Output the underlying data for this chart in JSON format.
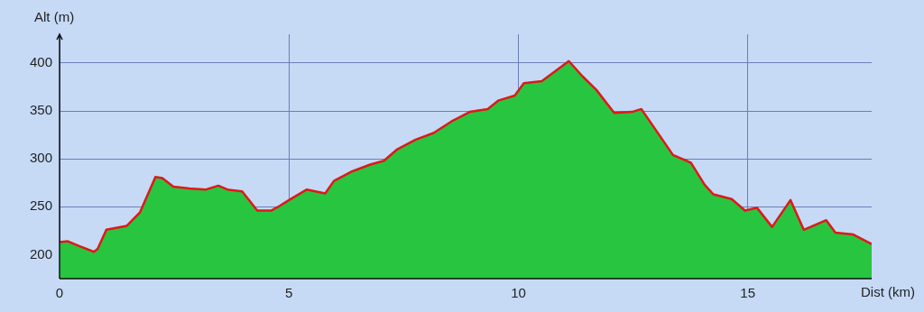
{
  "chart_data": {
    "type": "area",
    "xlabel": "Dist (km)",
    "ylabel": "Alt (m)",
    "xlim": [
      0,
      17.7
    ],
    "ylim": [
      175,
      430
    ],
    "xticks": [
      0,
      5,
      10,
      15
    ],
    "yticks": [
      200,
      250,
      300,
      350,
      400
    ],
    "grid": true,
    "series": [
      {
        "type": "line",
        "color": "#e01818",
        "x": [
          0,
          0.18,
          0.43,
          0.75,
          0.83,
          1.02,
          1.46,
          1.75,
          2.09,
          2.24,
          2.48,
          2.83,
          3.19,
          3.46,
          3.66,
          3.98,
          4.31,
          4.61,
          4.8,
          5.0,
          5.39,
          5.79,
          5.98,
          6.38,
          6.77,
          7.07,
          7.36,
          7.76,
          8.15,
          8.54,
          8.94,
          9.33,
          9.57,
          9.92,
          10.12,
          10.51,
          11.1,
          11.4,
          11.7,
          12.09,
          12.48,
          12.68,
          13.07,
          13.37,
          13.76,
          14.06,
          14.25,
          14.65,
          14.94,
          15.2,
          15.53,
          15.93,
          16.22,
          16.71,
          16.91,
          17.3,
          17.7
        ],
        "values": [
          213,
          214,
          209,
          203,
          206,
          226,
          230,
          244,
          281,
          280,
          271,
          269,
          268,
          272,
          268,
          266,
          246,
          246,
          251,
          257,
          268,
          264,
          277,
          287,
          294,
          298,
          310,
          320,
          327,
          339,
          349,
          352,
          361,
          366,
          379,
          381,
          402,
          386,
          372,
          348,
          349,
          352,
          325,
          304,
          296,
          273,
          263,
          258,
          246,
          249,
          229,
          257,
          226,
          236,
          223,
          221,
          211
        ]
      },
      {
        "color": "#28c540",
        "x": [
          0,
          0.18,
          0.43,
          0.75,
          0.83,
          1.02,
          1.46,
          1.75,
          2.09,
          2.24,
          2.48,
          2.83,
          3.19,
          3.46,
          3.66,
          3.98,
          4.31,
          4.61,
          4.8,
          5.0,
          5.39,
          5.79,
          5.98,
          6.38,
          6.77,
          7.07,
          7.36,
          7.76,
          8.15,
          8.54,
          8.94,
          9.33,
          9.57,
          9.92,
          10.12,
          10.51,
          11.1,
          11.4,
          11.7,
          12.09,
          12.48,
          12.68,
          13.07,
          13.37,
          13.76,
          14.06,
          14.25,
          14.65,
          14.94,
          15.2,
          15.53,
          15.93,
          16.22,
          16.71,
          16.91,
          17.3,
          17.7
        ],
        "values": [
          213,
          214,
          209,
          203,
          206,
          226,
          230,
          244,
          281,
          280,
          271,
          269,
          268,
          272,
          268,
          266,
          246,
          246,
          251,
          257,
          268,
          264,
          277,
          287,
          294,
          298,
          310,
          320,
          327,
          339,
          349,
          352,
          361,
          366,
          379,
          381,
          402,
          386,
          372,
          348,
          349,
          352,
          325,
          304,
          296,
          273,
          263,
          258,
          246,
          249,
          229,
          257,
          226,
          236,
          223,
          221,
          211
        ]
      }
    ]
  }
}
